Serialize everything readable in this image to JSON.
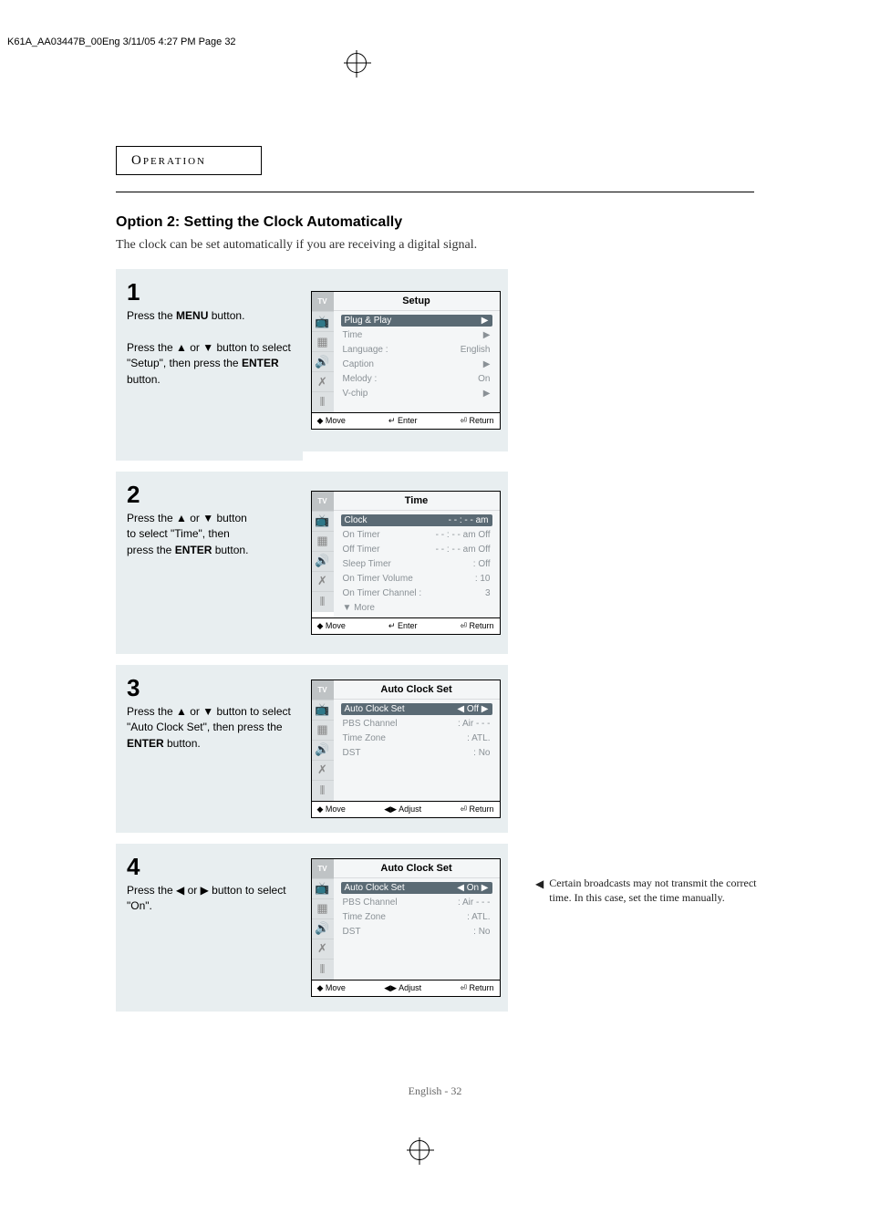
{
  "fileInfo": "K61A_AA03447B_00Eng  3/11/05  4:27 PM  Page 32",
  "headerText": "Operation",
  "option": {
    "title": "Option 2: Setting the Clock Automatically",
    "desc": "The clock can be set automatically if you are receiving a digital signal."
  },
  "steps": [
    {
      "num": "1",
      "html": "Press the <b>MENU</b> button.<br><br>Press the ▲ or ▼ button to select \"Setup\", then press the <b>ENTER</b> button.",
      "osd": {
        "title": "Setup",
        "items": [
          {
            "label": "Plug & Play",
            "val": "",
            "arrow": "▶",
            "selected": true
          },
          {
            "label": "Time",
            "val": "",
            "arrow": "▶",
            "selected": false
          },
          {
            "label": "Language :",
            "val": "English",
            "arrow": "",
            "selected": false
          },
          {
            "label": "Caption",
            "val": "",
            "arrow": "▶",
            "selected": false
          },
          {
            "label": "Melody    :",
            "val": "On",
            "arrow": "",
            "selected": false
          },
          {
            "label": "V-chip",
            "val": "",
            "arrow": "▶",
            "selected": false
          }
        ],
        "footer": [
          "◆ Move",
          "↵ Enter",
          "⏎ Return"
        ]
      }
    },
    {
      "num": "2",
      "html": "Press the ▲ or ▼ button<br>to select \"Time\", then<br>press the <b>ENTER</b> button.",
      "osd": {
        "title": "Time",
        "items": [
          {
            "label": "Clock",
            "val": "- - : - -  am",
            "arrow": "",
            "selected": true
          },
          {
            "label": "On Timer",
            "val": "- - : - -  am Off",
            "arrow": "",
            "selected": false
          },
          {
            "label": "Off Timer",
            "val": "- - : - -  am Off",
            "arrow": "",
            "selected": false
          },
          {
            "label": "Sleep Timer",
            "val": ": Off",
            "arrow": "",
            "selected": false
          },
          {
            "label": "On Timer Volume",
            "val": ": 10",
            "arrow": "",
            "selected": false
          },
          {
            "label": "On Timer Channel :",
            "val": "3",
            "arrow": "",
            "selected": false
          },
          {
            "label": "▼ More",
            "val": "",
            "arrow": "",
            "selected": false
          }
        ],
        "footer": [
          "◆ Move",
          "↵ Enter",
          "⏎ Return"
        ]
      }
    },
    {
      "num": "3",
      "html": "Press the ▲ or ▼ button to select \"Auto Clock Set\", then press the <b>ENTER</b> button.",
      "osd": {
        "title": "Auto Clock Set",
        "items": [
          {
            "label": "Auto Clock Set",
            "val": "◀  Off  ▶",
            "arrow": "",
            "selected": true
          },
          {
            "label": "PBS Channel",
            "val": ": Air   - - -",
            "arrow": "",
            "selected": false
          },
          {
            "label": "Time Zone",
            "val": ": ATL.",
            "arrow": "",
            "selected": false
          },
          {
            "label": "DST",
            "val": ": No",
            "arrow": "",
            "selected": false
          }
        ],
        "footer": [
          "◆ Move",
          "◀▶ Adjust",
          "⏎ Return"
        ]
      }
    },
    {
      "num": "4",
      "html": "Press the ◀ or ▶ button to select \"On\".",
      "osd": {
        "title": "Auto Clock Set",
        "items": [
          {
            "label": "Auto Clock Set",
            "val": "◀  On  ▶",
            "arrow": "",
            "selected": true
          },
          {
            "label": "PBS Channel",
            "val": ": Air   - - -",
            "arrow": "",
            "selected": false
          },
          {
            "label": "Time Zone",
            "val": ": ATL.",
            "arrow": "",
            "selected": false
          },
          {
            "label": "DST",
            "val": ": No",
            "arrow": "",
            "selected": false
          }
        ],
        "footer": [
          "◆ Move",
          "◀▶ Adjust",
          "⏎ Return"
        ]
      }
    }
  ],
  "sideNote": "Certain broadcasts may not transmit the correct time. In this case, set the time manually.",
  "pageFooter": "English - 32",
  "icons": [
    "TV",
    "📺",
    "▦",
    "🔊",
    "✗",
    "⦀"
  ]
}
